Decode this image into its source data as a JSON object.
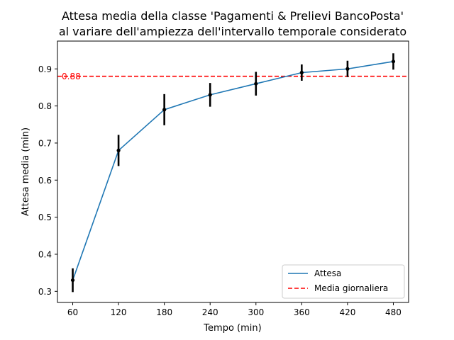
{
  "chart_data": {
    "type": "line",
    "title": [
      "Attesa media della classe 'Pagamenti & Prelievi BancoPosta'",
      "al variare dell'ampiezza dell'intervallo temporale considerato"
    ],
    "xlabel": "Tempo (min)",
    "ylabel": "Attesa media (min)",
    "x": [
      60,
      120,
      180,
      240,
      300,
      360,
      420,
      480
    ],
    "xlim": [
      40,
      500
    ],
    "ylim": [
      0.27,
      0.975
    ],
    "xticks": [
      60,
      120,
      180,
      240,
      300,
      360,
      420,
      480
    ],
    "yticks": [
      0.3,
      0.4,
      0.5,
      0.6,
      0.7,
      0.8,
      0.9
    ],
    "grid": false,
    "legend_position": "lower-right",
    "series": [
      {
        "name": "Attesa",
        "color": "#1f77b4",
        "values": [
          0.33,
          0.68,
          0.79,
          0.83,
          0.86,
          0.89,
          0.9,
          0.92
        ],
        "error": [
          0.032,
          0.042,
          0.042,
          0.032,
          0.032,
          0.022,
          0.022,
          0.022
        ],
        "error_color": "#000000"
      }
    ],
    "reference_line": {
      "name": "Media giornaliera",
      "value": 0.88,
      "label": "0.88",
      "color": "#ff0000",
      "style": "dashed"
    }
  }
}
